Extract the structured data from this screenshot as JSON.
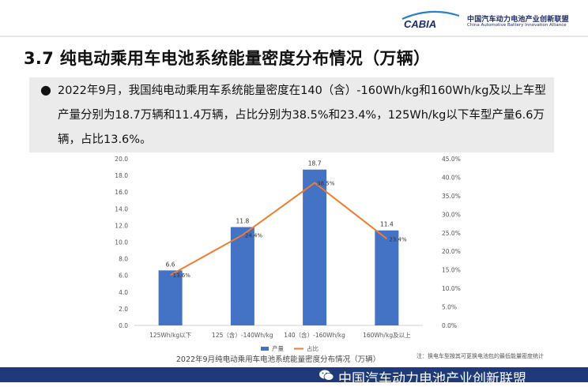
{
  "header": {
    "logo_text": "CABIA",
    "org_cn": "中国汽车动力电池产业创新联盟",
    "org_en": "China Automotive Battery Innovation Alliance"
  },
  "title": "3.7 纯电动乘用车电池系统能量密度分布情况（万辆）",
  "bullet": "2022年9月，我国纯电动乘用车系统能量密度在140（含）-160Wh/kg和160Wh/kg及以上车型产量分别为18.7万辆和11.4万辆，占比分别为38.5%和23.4%，125Wh/kg以下车型产量6.6万辆，占比13.6%。",
  "chart_data": {
    "type": "bar",
    "title": "2022年9月纯电动乘用车电池系统能量密度分布情况（万辆）",
    "categories": [
      "125Wh/kg以下",
      "125（含）-140Wh/kg",
      "140（含）-160Wh/kg",
      "160Wh/kg及以上"
    ],
    "series": [
      {
        "name": "产量",
        "type": "bar",
        "axis": "left",
        "values": [
          6.6,
          11.8,
          18.7,
          11.4
        ],
        "labels": [
          "6.6",
          "11.8",
          "18.7",
          "11.4"
        ],
        "color": "#4472c4"
      },
      {
        "name": "占比",
        "type": "line",
        "axis": "right",
        "values": [
          13.6,
          24.4,
          38.5,
          23.4
        ],
        "labels": [
          "13.6%",
          "24.4%",
          "38.5%",
          "23.4%"
        ],
        "color": "#ed7d31"
      }
    ],
    "y_left": {
      "min": 0,
      "max": 20,
      "step": 2,
      "ticks": [
        "0.0",
        "2.0",
        "4.0",
        "6.0",
        "8.0",
        "10.0",
        "12.0",
        "14.0",
        "16.0",
        "18.0",
        "20.0"
      ]
    },
    "y_right": {
      "min": 0,
      "max": 45,
      "step": 5,
      "ticks": [
        "0.0%",
        "5.0%",
        "10.0%",
        "15.0%",
        "20.0%",
        "25.0%",
        "30.0%",
        "35.0%",
        "40.0%",
        "45.0%"
      ]
    },
    "legend_position": "bottom",
    "grid": false
  },
  "note": "注：换电车型按其可更换电池包的最低能量密度统计",
  "footer": "中国汽车动力电池产业创新联盟",
  "icons": {
    "footer_icon": "wechat-icon"
  },
  "colors": {
    "footer_band": "#1f3a7a",
    "bar": "#4472c4",
    "line": "#ed7d31"
  }
}
